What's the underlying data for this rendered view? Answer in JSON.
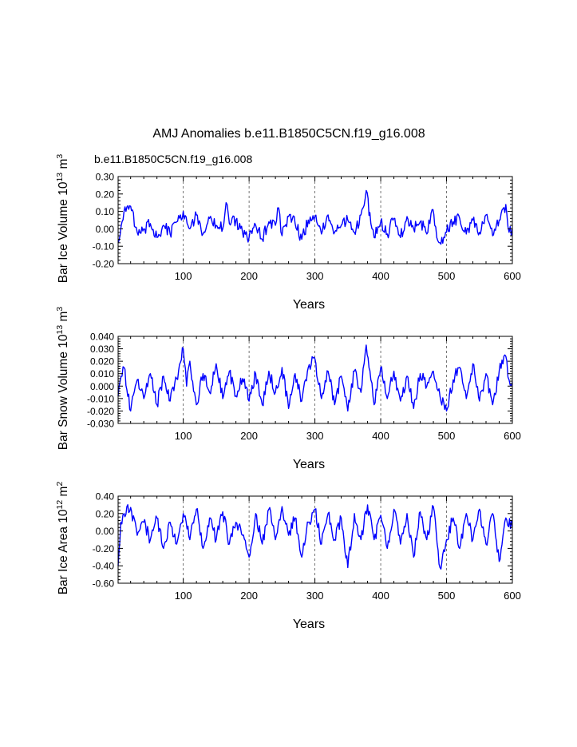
{
  "figure": {
    "title": "AMJ Anomalies b.e11.B1850C5CN.f19_g16.008",
    "case_label": "b.e11.B1850C5CN.f19_g16.008",
    "case_label_color": "#0000ff"
  },
  "series_color": "#0000ff",
  "chart_data": [
    {
      "type": "line",
      "ylabel_main": "Bar Ice Volume 10",
      "ylabel_exp": "13",
      "ylabel_unit": "m",
      "ylabel_unit_exp": "3",
      "xlabel": "Years",
      "xlim": [
        1,
        600
      ],
      "ylim": [
        -0.2,
        0.3
      ],
      "xticks": [
        100,
        200,
        300,
        400,
        500,
        600
      ],
      "xtick_labels": [
        "100",
        "200",
        "300",
        "400",
        "500",
        "600"
      ],
      "yticks": [
        -0.2,
        -0.1,
        0.0,
        0.1,
        0.2,
        0.3
      ],
      "ytick_labels": [
        "-0.20",
        "-0.10",
        "0.00",
        "0.10",
        "0.20",
        "0.30"
      ],
      "grid_x": [
        100,
        200,
        300,
        400,
        500
      ],
      "series": [
        {
          "x": [
            1,
            10,
            20,
            30,
            40,
            50,
            60,
            70,
            80,
            90,
            100,
            110,
            120,
            130,
            140,
            150,
            160,
            165,
            170,
            180,
            190,
            200,
            210,
            220,
            230,
            240,
            245,
            250,
            260,
            270,
            280,
            290,
            300,
            310,
            320,
            330,
            340,
            350,
            360,
            370,
            378,
            385,
            390,
            400,
            410,
            420,
            430,
            440,
            450,
            460,
            470,
            478,
            482,
            490,
            500,
            510,
            520,
            530,
            540,
            550,
            560,
            570,
            580,
            590,
            595,
            600
          ],
          "y": [
            -0.08,
            0.1,
            0.13,
            -0.02,
            0.0,
            0.03,
            -0.05,
            0.02,
            -0.03,
            0.04,
            0.1,
            0.0,
            0.08,
            -0.03,
            0.06,
            0.02,
            0.0,
            0.15,
            0.03,
            0.05,
            -0.02,
            -0.05,
            0.02,
            -0.06,
            0.04,
            0.02,
            0.12,
            -0.04,
            0.07,
            0.03,
            -0.06,
            0.05,
            0.07,
            -0.03,
            0.08,
            -0.02,
            0.02,
            0.05,
            -0.02,
            0.08,
            0.22,
            0.03,
            -0.05,
            0.04,
            -0.03,
            0.06,
            -0.05,
            0.07,
            0.0,
            0.04,
            -0.03,
            0.11,
            0.02,
            -0.08,
            -0.02,
            0.04,
            0.06,
            -0.03,
            0.05,
            -0.02,
            0.08,
            -0.04,
            0.05,
            0.14,
            -0.02,
            0.0
          ]
        }
      ]
    },
    {
      "type": "line",
      "ylabel_main": "Bar Snow Volume 10",
      "ylabel_exp": "13",
      "ylabel_unit": "m",
      "ylabel_unit_exp": "3",
      "xlabel": "Years",
      "xlim": [
        1,
        600
      ],
      "ylim": [
        -0.03,
        0.04
      ],
      "xticks": [
        100,
        200,
        300,
        400,
        500,
        600
      ],
      "xtick_labels": [
        "100",
        "200",
        "300",
        "400",
        "500",
        "600"
      ],
      "yticks": [
        -0.03,
        -0.02,
        -0.01,
        0.0,
        0.01,
        0.02,
        0.03,
        0.04
      ],
      "ytick_labels": [
        "-0.030",
        "-0.020",
        "-0.010",
        "0.000",
        "0.010",
        "0.020",
        "0.030",
        "0.040"
      ],
      "grid_x": [
        100,
        200,
        300,
        400,
        500
      ],
      "series": [
        {
          "x": [
            1,
            10,
            20,
            30,
            40,
            50,
            60,
            70,
            80,
            90,
            100,
            105,
            110,
            120,
            130,
            140,
            150,
            160,
            170,
            180,
            190,
            200,
            210,
            220,
            230,
            240,
            250,
            260,
            270,
            280,
            290,
            300,
            310,
            320,
            330,
            340,
            350,
            360,
            370,
            378,
            385,
            390,
            400,
            410,
            420,
            430,
            440,
            450,
            460,
            470,
            480,
            490,
            500,
            510,
            520,
            530,
            540,
            550,
            560,
            570,
            580,
            590,
            595,
            600
          ],
          "y": [
            -0.008,
            0.015,
            -0.02,
            0.005,
            -0.01,
            0.01,
            -0.015,
            0.008,
            -0.012,
            0.006,
            0.03,
            0.0,
            0.02,
            -0.015,
            0.01,
            -0.005,
            0.018,
            -0.01,
            0.012,
            -0.008,
            0.006,
            -0.012,
            0.01,
            -0.015,
            0.012,
            -0.005,
            0.015,
            -0.018,
            0.01,
            -0.012,
            0.015,
            0.022,
            -0.01,
            0.012,
            -0.015,
            0.008,
            -0.02,
            0.012,
            -0.005,
            0.033,
            0.005,
            -0.015,
            0.015,
            -0.01,
            0.012,
            -0.012,
            0.008,
            -0.018,
            0.01,
            0.0,
            0.012,
            -0.008,
            -0.02,
            0.005,
            0.015,
            -0.01,
            0.018,
            -0.012,
            0.01,
            -0.015,
            0.012,
            0.024,
            0.005,
            0.003
          ]
        }
      ]
    },
    {
      "type": "line",
      "ylabel_main": "Bar Ice Area 10",
      "ylabel_exp": "12",
      "ylabel_unit": "m",
      "ylabel_unit_exp": "2",
      "xlabel": "Years",
      "xlim": [
        1,
        600
      ],
      "ylim": [
        -0.6,
        0.4
      ],
      "xticks": [
        100,
        200,
        300,
        400,
        500,
        600
      ],
      "xtick_labels": [
        "100",
        "200",
        "300",
        "400",
        "500",
        "600"
      ],
      "yticks": [
        -0.6,
        -0.4,
        -0.2,
        0.0,
        0.2,
        0.4
      ],
      "ytick_labels": [
        "-0.60",
        "-0.40",
        "-0.20",
        "0.00",
        "0.20",
        "0.40"
      ],
      "grid_x": [
        100,
        200,
        300,
        400,
        500
      ],
      "series": [
        {
          "x": [
            1,
            5,
            10,
            20,
            30,
            40,
            50,
            60,
            70,
            80,
            90,
            100,
            110,
            120,
            130,
            140,
            150,
            160,
            170,
            180,
            190,
            200,
            210,
            220,
            230,
            240,
            250,
            260,
            270,
            280,
            290,
            300,
            310,
            320,
            330,
            340,
            350,
            360,
            370,
            380,
            390,
            400,
            410,
            420,
            430,
            440,
            450,
            460,
            470,
            480,
            490,
            500,
            510,
            520,
            530,
            540,
            550,
            560,
            570,
            580,
            590,
            600
          ],
          "y": [
            -0.4,
            0.1,
            0.2,
            0.27,
            -0.05,
            0.1,
            -0.1,
            0.15,
            -0.2,
            0.1,
            -0.15,
            0.2,
            -0.1,
            0.25,
            -0.2,
            0.15,
            -0.1,
            0.22,
            -0.15,
            0.1,
            -0.05,
            -0.3,
            0.2,
            -0.15,
            0.25,
            -0.1,
            0.28,
            -0.05,
            0.15,
            -0.3,
            0.1,
            0.25,
            -0.15,
            0.2,
            -0.1,
            0.15,
            -0.42,
            0.2,
            -0.1,
            0.3,
            -0.1,
            0.18,
            -0.2,
            0.25,
            -0.15,
            0.2,
            -0.3,
            0.22,
            -0.1,
            0.28,
            -0.42,
            -0.1,
            0.15,
            -0.2,
            0.2,
            -0.1,
            0.25,
            -0.15,
            0.2,
            -0.35,
            0.15,
            0.05
          ]
        }
      ]
    }
  ]
}
